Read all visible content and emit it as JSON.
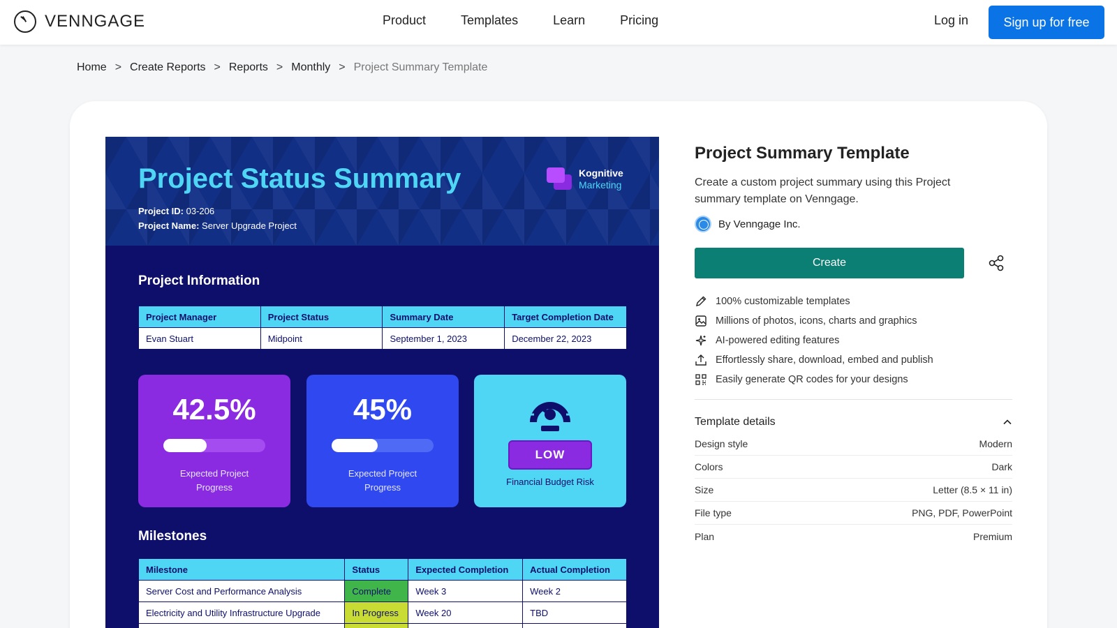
{
  "nav": {
    "brand": "VENNGAGE",
    "links": [
      "Product",
      "Templates",
      "Learn",
      "Pricing"
    ],
    "login": "Log in",
    "signup": "Sign up for free"
  },
  "breadcrumb": [
    "Home",
    "Create Reports",
    "Reports",
    "Monthly",
    "Project Summary Template"
  ],
  "preview": {
    "title": "Project Status Summary",
    "brand_line1": "Kognitive",
    "brand_line2": "Marketing",
    "project_id_label": "Project ID:",
    "project_id": "03-206",
    "project_name_label": "Project Name:",
    "project_name": "Server Upgrade Project",
    "info_heading": "Project Information",
    "info_headers": [
      "Project Manager",
      "Project Status",
      "Summary Date",
      "Target Completion Date"
    ],
    "info_values": [
      "Evan Stuart",
      "Midpoint",
      "September 1, 2023",
      "December 22, 2023"
    ],
    "kpis": [
      {
        "value": "42.5%",
        "progress": 0.425,
        "caption1": "Expected Project",
        "caption2": "Progress",
        "color": "#8a2be2",
        "track": "#a44cf0"
      },
      {
        "value": "45%",
        "progress": 0.45,
        "caption1": "Expected Project",
        "caption2": "Progress",
        "color": "#2f48ef",
        "track": "#4f6af5"
      }
    ],
    "risk": {
      "level": "LOW",
      "caption": "Financial Budget Risk",
      "color": "#4fd6f5"
    },
    "milestones_heading": "Milestones",
    "milestone_headers": [
      "Milestone",
      "Status",
      "Expected Completion",
      "Actual Completion"
    ],
    "milestones": [
      {
        "name": "Server Cost and Performance Analysis",
        "status": "Complete",
        "status_color": "#3fb54a",
        "expected": "Week 3",
        "actual": "Week 2"
      },
      {
        "name": "Electricity and Utility Infrastructure Upgrade",
        "status": "In Progress",
        "status_color": "#c9dc33",
        "expected": "Week 20",
        "actual": "TBD"
      },
      {
        "name": "",
        "status": "",
        "status_color": "#c9dc33",
        "expected": "",
        "actual": ""
      }
    ]
  },
  "panel": {
    "title": "Project Summary Template",
    "description": "Create a custom project summary using this Project summary template on Venngage.",
    "author": "By Venngage Inc.",
    "create": "Create",
    "features": [
      {
        "icon": "pencil-icon",
        "text": "100% customizable templates"
      },
      {
        "icon": "image-icon",
        "text": "Millions of photos, icons, charts and graphics"
      },
      {
        "icon": "sparkle-icon",
        "text": "AI-powered editing features"
      },
      {
        "icon": "upload-icon",
        "text": "Effortlessly share, download, embed and publish"
      },
      {
        "icon": "qr-code-icon",
        "text": "Easily generate QR codes for your designs"
      }
    ],
    "details_title": "Template details",
    "details": [
      {
        "label": "Design style",
        "value": "Modern"
      },
      {
        "label": "Colors",
        "value": "Dark"
      },
      {
        "label": "Size",
        "value": "Letter (8.5 × 11 in)"
      },
      {
        "label": "File type",
        "value": "PNG, PDF, PowerPoint"
      },
      {
        "label": "Plan",
        "value": "Premium"
      }
    ]
  }
}
